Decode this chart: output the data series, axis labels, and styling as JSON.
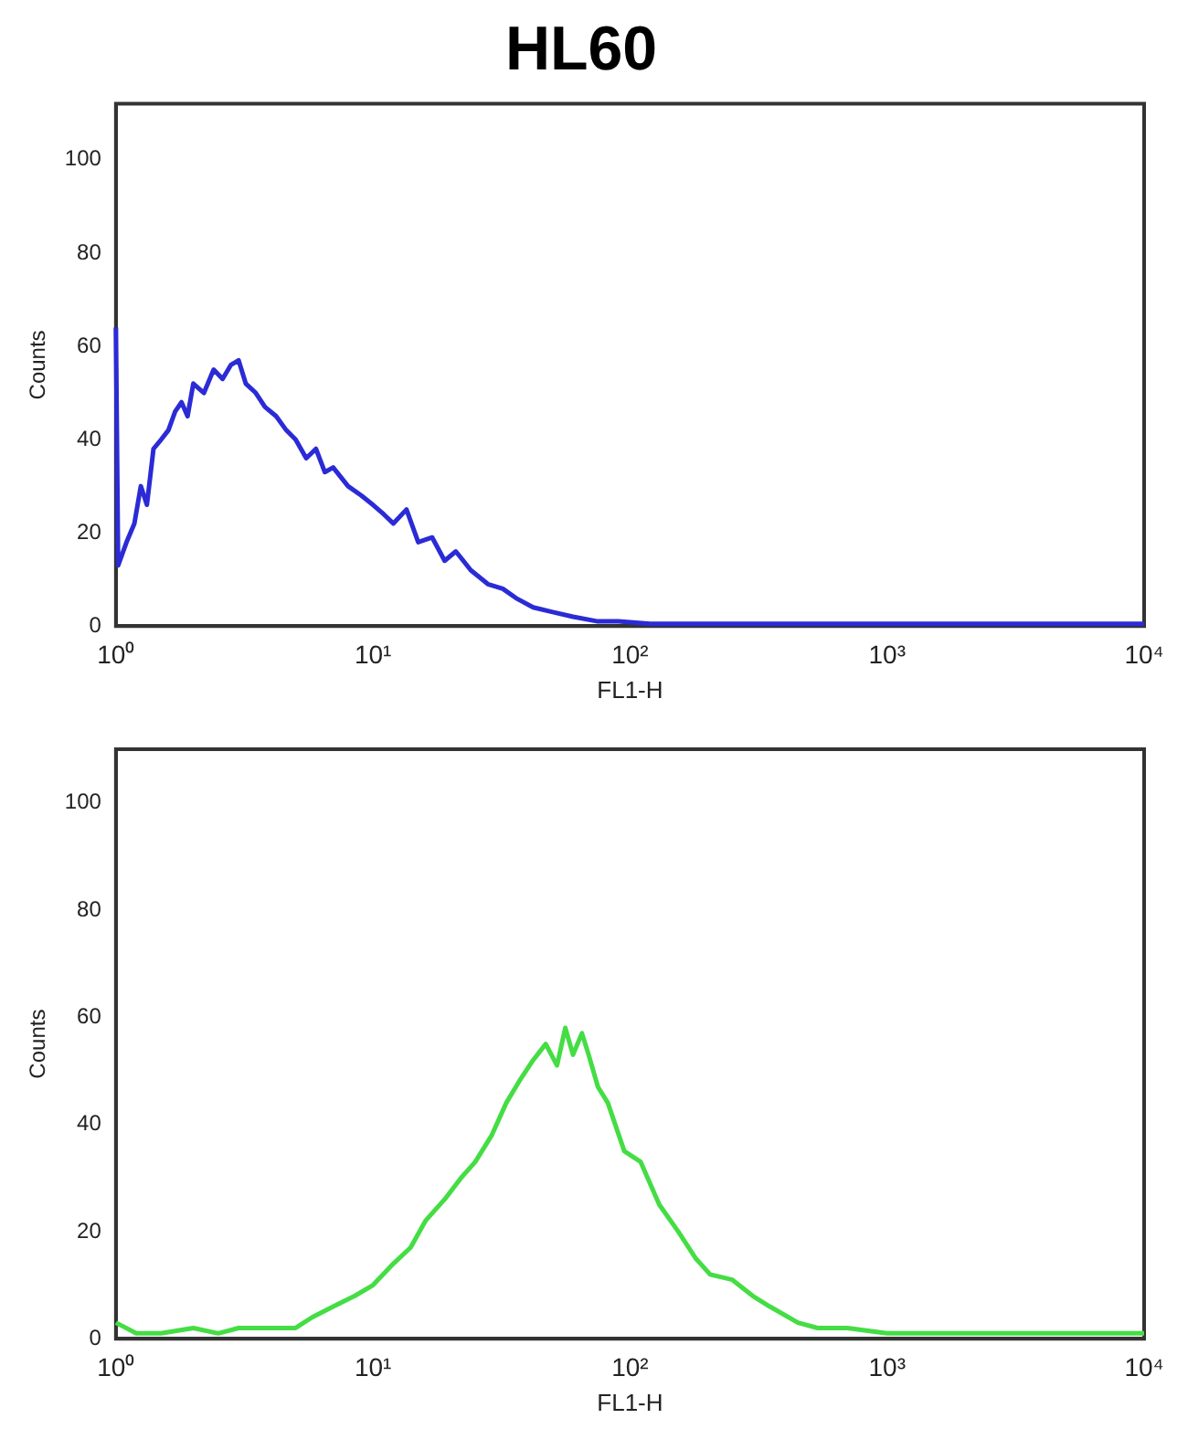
{
  "chart_data": [
    {
      "type": "line",
      "title": "HL60",
      "xlabel": "FL1-H",
      "ylabel": "Counts",
      "log": "x",
      "xlim": [
        1,
        10000
      ],
      "ylim": [
        0,
        112
      ],
      "xticks": [
        {
          "value": 1,
          "label": "10⁰"
        },
        {
          "value": 10,
          "label": "10¹"
        },
        {
          "value": 100,
          "label": "10²"
        },
        {
          "value": 1000,
          "label": "10³"
        },
        {
          "value": 10000,
          "label": "10⁴"
        }
      ],
      "yticks": [
        0,
        20,
        40,
        60,
        80,
        100
      ],
      "series": [
        {
          "color": "#2b2bd6",
          "x": [
            1,
            1.02,
            1.1,
            1.18,
            1.25,
            1.32,
            1.4,
            1.5,
            1.6,
            1.7,
            1.8,
            1.9,
            2.0,
            2.2,
            2.4,
            2.6,
            2.8,
            3.0,
            3.2,
            3.5,
            3.8,
            4.2,
            4.6,
            5.0,
            5.5,
            6.0,
            6.5,
            7.0,
            8.0,
            9.0,
            10,
            11,
            12,
            13.5,
            15,
            17,
            19,
            21,
            24,
            28,
            32,
            36,
            42,
            50,
            60,
            75,
            90,
            120,
            200,
            500,
            1000,
            3000,
            10000
          ],
          "values": [
            64,
            13,
            18,
            22,
            30,
            26,
            38,
            40,
            42,
            46,
            48,
            45,
            52,
            50,
            55,
            53,
            56,
            57,
            52,
            50,
            47,
            45,
            42,
            40,
            36,
            38,
            33,
            34,
            30,
            28,
            26,
            24,
            22,
            25,
            18,
            19,
            14,
            16,
            12,
            9,
            8,
            6,
            4,
            3,
            2,
            1,
            1,
            0.5,
            0.5,
            0.5,
            0.5,
            0.5,
            0.5
          ]
        }
      ]
    },
    {
      "type": "line",
      "xlabel": "FL1-H",
      "ylabel": "Counts",
      "log": "x",
      "xlim": [
        1,
        10000
      ],
      "ylim": [
        0,
        110
      ],
      "xticks": [
        {
          "value": 1,
          "label": "10⁰"
        },
        {
          "value": 10,
          "label": "10¹"
        },
        {
          "value": 100,
          "label": "10²"
        },
        {
          "value": 1000,
          "label": "10³"
        },
        {
          "value": 10000,
          "label": "10⁴"
        }
      ],
      "yticks": [
        0,
        20,
        40,
        60,
        80,
        100
      ],
      "series": [
        {
          "color": "#44dd44",
          "x": [
            1,
            1.2,
            1.5,
            2,
            2.5,
            3,
            4,
            5,
            5.8,
            7,
            8.5,
            10,
            12,
            14,
            16,
            19,
            22,
            25,
            29,
            33,
            37,
            42,
            47,
            52,
            56,
            60,
            65,
            69,
            75,
            82,
            95,
            110,
            130,
            154,
            180,
            205,
            250,
            300,
            350,
            450,
            537,
            700,
            1000,
            2000,
            5000,
            10000
          ],
          "values": [
            3,
            1,
            1,
            2,
            1,
            2,
            2,
            2,
            4,
            6,
            8,
            10,
            14,
            17,
            22,
            26,
            30,
            33,
            38,
            44,
            48,
            52,
            55,
            51,
            58,
            53,
            57,
            53,
            47,
            44,
            35,
            33,
            25,
            20,
            15,
            12,
            11,
            8,
            6,
            3,
            2,
            2,
            1,
            1,
            1,
            1
          ]
        }
      ]
    }
  ]
}
